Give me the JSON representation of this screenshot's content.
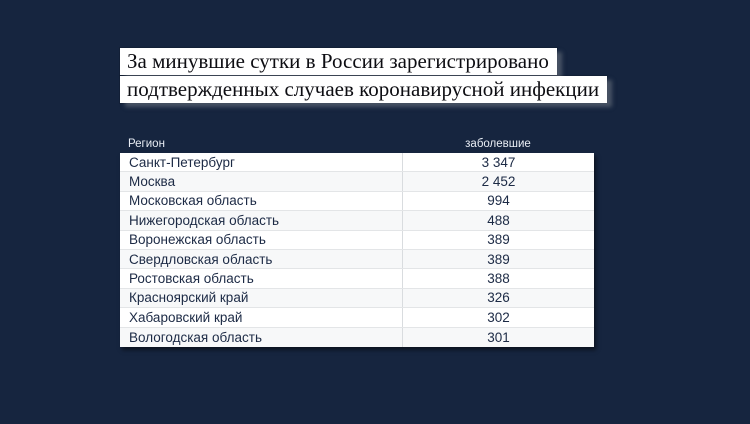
{
  "headline": {
    "line1": "За минувшие сутки в России зарегистрировано",
    "line2": "подтвержденных случаев коронавирусной инфекции"
  },
  "table": {
    "header": {
      "region": "Регион",
      "cases": "заболевшие"
    },
    "rows": [
      {
        "region": "Санкт-Петербург",
        "cases": "3 347"
      },
      {
        "region": "Москва",
        "cases": "2 452"
      },
      {
        "region": "Московская область",
        "cases": "994"
      },
      {
        "region": "Нижегородская область",
        "cases": "488"
      },
      {
        "region": "Воронежская область",
        "cases": "389"
      },
      {
        "region": "Свердловская область",
        "cases": "389"
      },
      {
        "region": "Ростовская область",
        "cases": "388"
      },
      {
        "region": "Красноярский край",
        "cases": "326"
      },
      {
        "region": "Хабаровский край",
        "cases": "302"
      },
      {
        "region": "Вологодская область",
        "cases": "301"
      }
    ]
  },
  "chart_data": {
    "type": "table",
    "title": "За минувшие сутки в России зарегистрировано подтвержденных случаев коронавирусной инфекции",
    "columns": [
      "Регион",
      "заболевшие"
    ],
    "rows": [
      [
        "Санкт-Петербург",
        3347
      ],
      [
        "Москва",
        2452
      ],
      [
        "Московская область",
        994
      ],
      [
        "Нижегородская область",
        488
      ],
      [
        "Воронежская область",
        389
      ],
      [
        "Свердловская область",
        389
      ],
      [
        "Ростовская область",
        388
      ],
      [
        "Красноярский край",
        326
      ],
      [
        "Хабаровский край",
        302
      ],
      [
        "Вологодская область",
        301
      ]
    ],
    "legend_position": "none",
    "grid": false
  },
  "colors": {
    "background": "#16253f",
    "headline_box": "#ffffff",
    "headline_text": "#0d0d12",
    "header_text": "#e8edf4",
    "table_text": "#1c2a45",
    "row_alt": "#f7f8f9"
  }
}
